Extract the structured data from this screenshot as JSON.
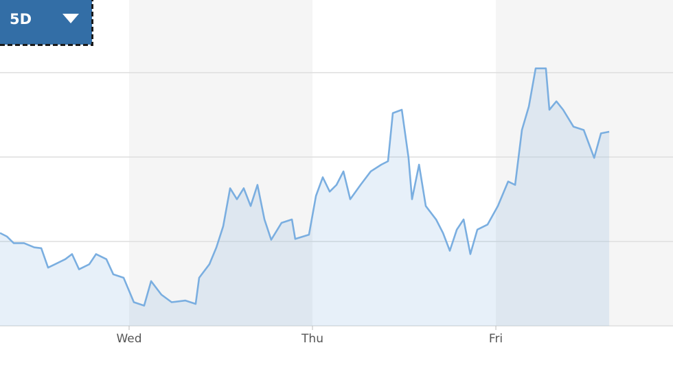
{
  "controls": {
    "range": "5D"
  },
  "chart_data": {
    "type": "line",
    "x": [
      0.296,
      0.333,
      0.371,
      0.427,
      0.483,
      0.521,
      0.558,
      0.596,
      0.652,
      0.689,
      0.727,
      0.783,
      0.82,
      0.876,
      0.914,
      0.97,
      1.026,
      1.082,
      1.12,
      1.176,
      1.232,
      1.307,
      1.363,
      1.382,
      1.438,
      1.476,
      1.513,
      1.551,
      1.588,
      1.625,
      1.663,
      1.7,
      1.738,
      1.775,
      1.831,
      1.888,
      1.906,
      1.981,
      2.019,
      2.056,
      2.094,
      2.131,
      2.169,
      2.206,
      2.262,
      2.318,
      2.375,
      2.412,
      2.438,
      2.487,
      2.524,
      2.543,
      2.581,
      2.618,
      2.674,
      2.712,
      2.749,
      2.787,
      2.824,
      2.861,
      2.899,
      2.955,
      3.011,
      3.067,
      3.105,
      3.142,
      3.18,
      3.217,
      3.273,
      3.292,
      3.33,
      3.367,
      3.423,
      3.479,
      3.536,
      3.573,
      3.618
    ],
    "series": [
      {
        "color": "#7aaee0",
        "values": [
          1.1,
          1.06,
          0.98,
          0.98,
          0.93,
          0.92,
          0.69,
          0.73,
          0.79,
          0.85,
          0.67,
          0.73,
          0.85,
          0.79,
          0.61,
          0.57,
          0.28,
          0.24,
          0.53,
          0.37,
          0.28,
          0.3,
          0.26,
          0.57,
          0.73,
          0.93,
          1.18,
          1.63,
          1.5,
          1.63,
          1.42,
          1.67,
          1.26,
          1.02,
          1.22,
          1.26,
          1.03,
          1.08,
          1.54,
          1.76,
          1.59,
          1.67,
          1.83,
          1.5,
          1.67,
          1.83,
          1.91,
          1.95,
          2.52,
          2.56,
          1.99,
          1.5,
          1.91,
          1.42,
          1.26,
          1.1,
          0.89,
          1.14,
          1.26,
          0.85,
          1.14,
          1.2,
          1.42,
          1.71,
          1.67,
          2.32,
          2.6,
          3.05,
          3.05,
          2.56,
          2.66,
          2.56,
          2.36,
          2.32,
          1.99,
          2.28,
          2.3
        ]
      }
    ],
    "xlim": [
      0.296,
      3.966
    ],
    "xticks": [
      {
        "value": 1,
        "label": "Wed"
      },
      {
        "value": 2,
        "label": "Thu"
      },
      {
        "value": 3,
        "label": "Fri"
      }
    ],
    "ylim": [
      0,
      3.86
    ],
    "grid_lines": [
      0,
      1,
      2,
      3
    ],
    "grid": true
  }
}
